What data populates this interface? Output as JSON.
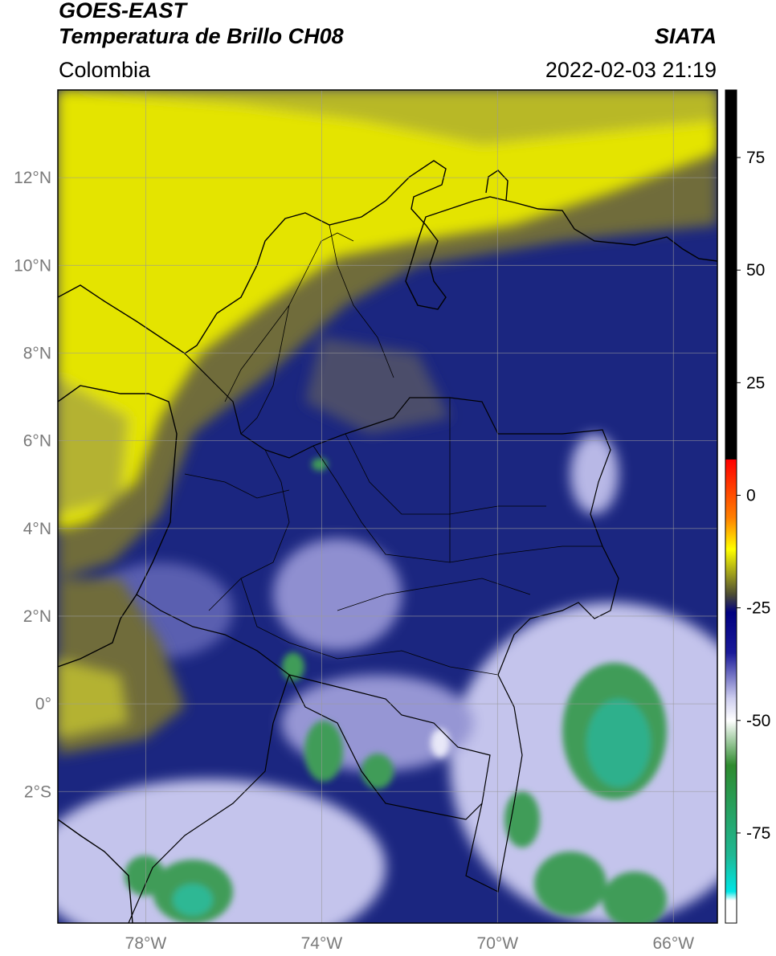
{
  "header": {
    "satellite": "GOES-EAST",
    "product": "Temperatura de Brillo CH08",
    "region": "Colombia",
    "source": "SIATA",
    "datetime": "2022-02-03 21:19"
  },
  "map": {
    "lon_range": [
      -80,
      -65
    ],
    "lat_range": [
      -5,
      14
    ],
    "lon_ticks": [
      {
        "value": -78,
        "label": "78°W"
      },
      {
        "value": -74,
        "label": "74°W"
      },
      {
        "value": -70,
        "label": "70°W"
      },
      {
        "value": -66,
        "label": "66°W"
      }
    ],
    "lat_ticks": [
      {
        "value": 12,
        "label": "12°N"
      },
      {
        "value": 10,
        "label": "10°N"
      },
      {
        "value": 8,
        "label": "8°N"
      },
      {
        "value": 6,
        "label": "6°N"
      },
      {
        "value": 4,
        "label": "4°N"
      },
      {
        "value": 2,
        "label": "2°N"
      },
      {
        "value": 0,
        "label": "0°"
      },
      {
        "value": -2,
        "label": "2°S"
      }
    ],
    "gridlines": true
  },
  "colorbar": {
    "unit_range": [
      -95,
      90
    ],
    "ticks": [
      75,
      50,
      25,
      0,
      -25,
      -50,
      -75
    ],
    "stops": [
      {
        "value": 90,
        "color": "#000000"
      },
      {
        "value": 8,
        "color": "#000000"
      },
      {
        "value": 7.9,
        "color": "#ff0000"
      },
      {
        "value": -5,
        "color": "#ff8000"
      },
      {
        "value": -12,
        "color": "#ffff00"
      },
      {
        "value": -22,
        "color": "#4d4d33"
      },
      {
        "value": -26,
        "color": "#000080"
      },
      {
        "value": -35,
        "color": "#1a1a99"
      },
      {
        "value": -45,
        "color": "#ccccee"
      },
      {
        "value": -50,
        "color": "#ffffff"
      },
      {
        "value": -60,
        "color": "#2e8b2e"
      },
      {
        "value": -80,
        "color": "#1fb894"
      },
      {
        "value": -88,
        "color": "#00e5e5"
      },
      {
        "value": -90,
        "color": "#ffffff"
      },
      {
        "value": -95,
        "color": "#ffffff"
      }
    ]
  },
  "colors": {
    "yellow": "#e8e800",
    "olive": "#8c8c2a",
    "navy": "#1b2680",
    "lavender": "#c8c8ee",
    "green": "#3a9a5a",
    "teal": "#2fb894"
  }
}
